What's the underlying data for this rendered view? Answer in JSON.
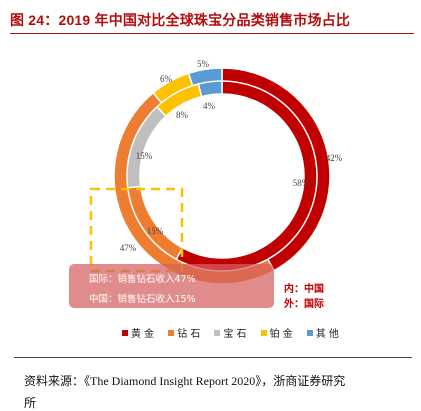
{
  "title": "图 24：2019 年中国对比全球珠宝分品类销售市场占比",
  "chart_data": {
    "type": "pie",
    "donut": true,
    "categories": [
      "黄金",
      "钻石",
      "宝石",
      "铂金",
      "其他"
    ],
    "colors": [
      "#c00000",
      "#ed7d31",
      "#bfbfbf",
      "#ffc000",
      "#5b9bd5"
    ],
    "series": [
      {
        "name": "国际",
        "ring": "outer",
        "values": [
          42,
          47,
          0,
          6,
          5
        ],
        "labels": [
          "42%",
          "47%",
          "",
          "6%",
          "5%"
        ]
      },
      {
        "name": "中国",
        "ring": "inner",
        "values": [
          58,
          15,
          15,
          8,
          4
        ],
        "labels": [
          "58%",
          "15%",
          "15%",
          "8%",
          "4%"
        ]
      }
    ]
  },
  "ring_note": {
    "inner": "内：中国",
    "outer": "外：国际"
  },
  "tooltip": {
    "line1": "国际：销售钻石收入47%",
    "line2": "中国：销售钻石收入15%"
  },
  "source": "资料来源：《The Diamond Insight Report 2020》，浙商证券研究",
  "source_tail": "所"
}
